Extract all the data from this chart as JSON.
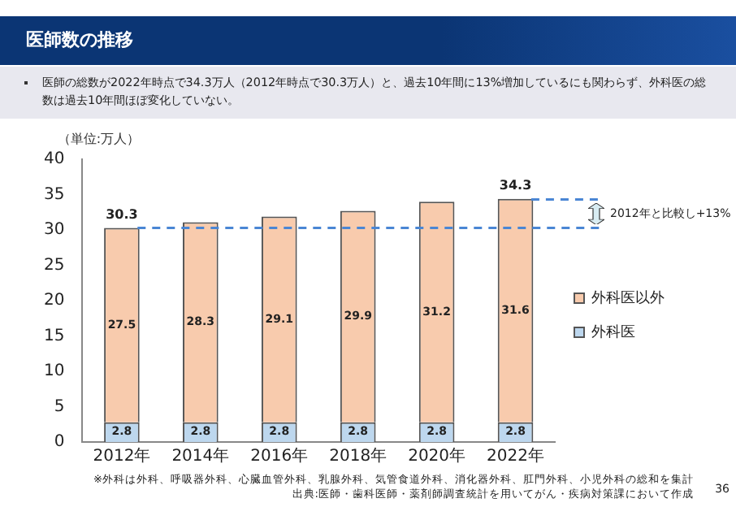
{
  "chart_data": {
    "type": "bar",
    "title": "医師数の推移",
    "subtitle": "医師の総数が2022年時点で34.3万人（2012年時点で30.3万人）と、過去10年間に13%増加しているにも関わらず、外科医の総数は過去10年間ほぼ変化していない。",
    "ylabel": "（単位:万人）",
    "categories": [
      "2012年",
      "2014年",
      "2016年",
      "2018年",
      "2020年",
      "2022年"
    ],
    "series": [
      {
        "name": "外科医",
        "color": "#bdd7ee",
        "values": [
          2.8,
          2.8,
          2.8,
          2.8,
          2.8,
          2.8
        ]
      },
      {
        "name": "外科医以外",
        "color": "#f8cbad",
        "values": [
          27.5,
          28.3,
          29.1,
          29.9,
          31.2,
          31.6
        ]
      }
    ],
    "stacked": true,
    "data_labels": true,
    "totals": [
      "30.3",
      null,
      null,
      null,
      null,
      "34.3"
    ],
    "ylim": [
      0,
      40
    ],
    "yticks": [
      0,
      5,
      10,
      15,
      20,
      25,
      30,
      35,
      40
    ],
    "grid": false,
    "legend": "right",
    "ref_lines": [
      {
        "axis": "y",
        "value": 30.3,
        "color": "#4a86d4",
        "line_style": "dashed"
      },
      {
        "axis": "y",
        "value": 34.3,
        "color": "#4a86d4",
        "line_style": "dashed"
      }
    ],
    "annotations": [
      "2012年と比較し+13%",
      "※外科は外科、呼吸器外科、心臓血管外科、乳腺外科、気管食道外科、消化器外科、肛門外科、小児外科の総和を集計",
      "出典:医師・歯科医師・薬剤師調査統計を用いてがん・疾病対策課において作成",
      "36"
    ]
  }
}
